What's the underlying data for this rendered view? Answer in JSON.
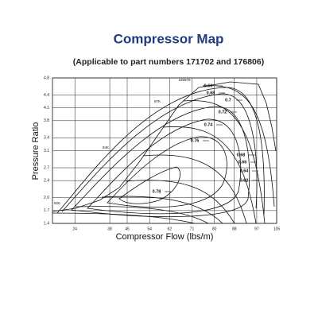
{
  "chart_data": {
    "type": "compressor-map",
    "title": "Compressor Map",
    "subtitle": "(Applicable to part numbers 171702 and 176806)",
    "x_label": "Compressor Flow (lbs/m)",
    "y_label": "Pressure Ratio",
    "xlim": [
      15,
      105
    ],
    "xticks": [
      24,
      38,
      45,
      54,
      62,
      71,
      80,
      88,
      97,
      105
    ],
    "ylim": [
      1.4,
      4.8
    ],
    "yticks": [
      1.4,
      1.7,
      {
        "value": 2,
        "label": "2.0"
      },
      2.4,
      2.7,
      3.1,
      3.4,
      3.8,
      4.1,
      4.4,
      4.8
    ],
    "grid": true,
    "annotations": [
      "0.66",
      "0.68",
      "0.7",
      "0.72",
      "0.74",
      "0.76",
      "0.78",
      "0.68",
      "0.66",
      "0.64",
      "0.62",
      "165979",
      "97K",
      "84K",
      "52K"
    ]
  }
}
